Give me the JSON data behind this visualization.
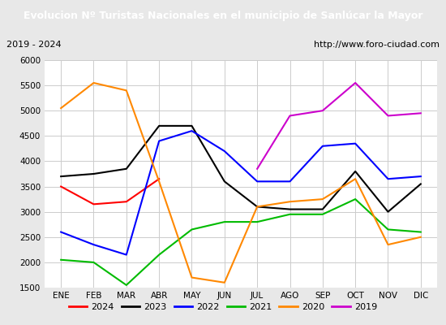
{
  "title": "Evolucion Nº Turistas Nacionales en el municipio de Sanlúcar la Mayor",
  "subtitle_left": "2019 - 2024",
  "subtitle_right": "http://www.foro-ciudad.com",
  "title_bg_color": "#4472c4",
  "title_text_color": "#ffffff",
  "months": [
    "ENE",
    "FEB",
    "MAR",
    "ABR",
    "MAY",
    "JUN",
    "JUL",
    "AGO",
    "SEP",
    "OCT",
    "NOV",
    "DIC"
  ],
  "ylim": [
    1500,
    6000
  ],
  "yticks": [
    1500,
    2000,
    2500,
    3000,
    3500,
    4000,
    4500,
    5000,
    5500,
    6000
  ],
  "series": {
    "2024": {
      "color": "#ff0000",
      "data": [
        3500,
        3150,
        3200,
        3650,
        null,
        null,
        null,
        null,
        null,
        null,
        null,
        null
      ]
    },
    "2023": {
      "color": "#000000",
      "data": [
        3700,
        3750,
        3850,
        4700,
        4700,
        3600,
        3100,
        3050,
        3050,
        3800,
        3000,
        3550
      ]
    },
    "2022": {
      "color": "#0000ff",
      "data": [
        2600,
        2350,
        2150,
        4400,
        4600,
        4200,
        3600,
        3600,
        4300,
        4350,
        3650,
        3700
      ]
    },
    "2021": {
      "color": "#00bb00",
      "data": [
        2050,
        2000,
        1550,
        2150,
        2650,
        2800,
        2800,
        2950,
        2950,
        3250,
        2650,
        2600
      ]
    },
    "2020": {
      "color": "#ff8800",
      "data": [
        5050,
        5550,
        5400,
        3600,
        1700,
        1600,
        3100,
        3200,
        3250,
        3650,
        2350,
        2500
      ]
    },
    "2019": {
      "color": "#cc00cc",
      "data": [
        null,
        null,
        null,
        null,
        null,
        null,
        3850,
        4900,
        5000,
        5550,
        4900,
        4950
      ]
    }
  },
  "legend_order": [
    "2024",
    "2023",
    "2022",
    "2021",
    "2020",
    "2019"
  ],
  "grid_color": "#cccccc",
  "bg_color": "#e8e8e8",
  "plot_bg_color": "#ffffff",
  "subtitle_bg": "#e0e0e0"
}
